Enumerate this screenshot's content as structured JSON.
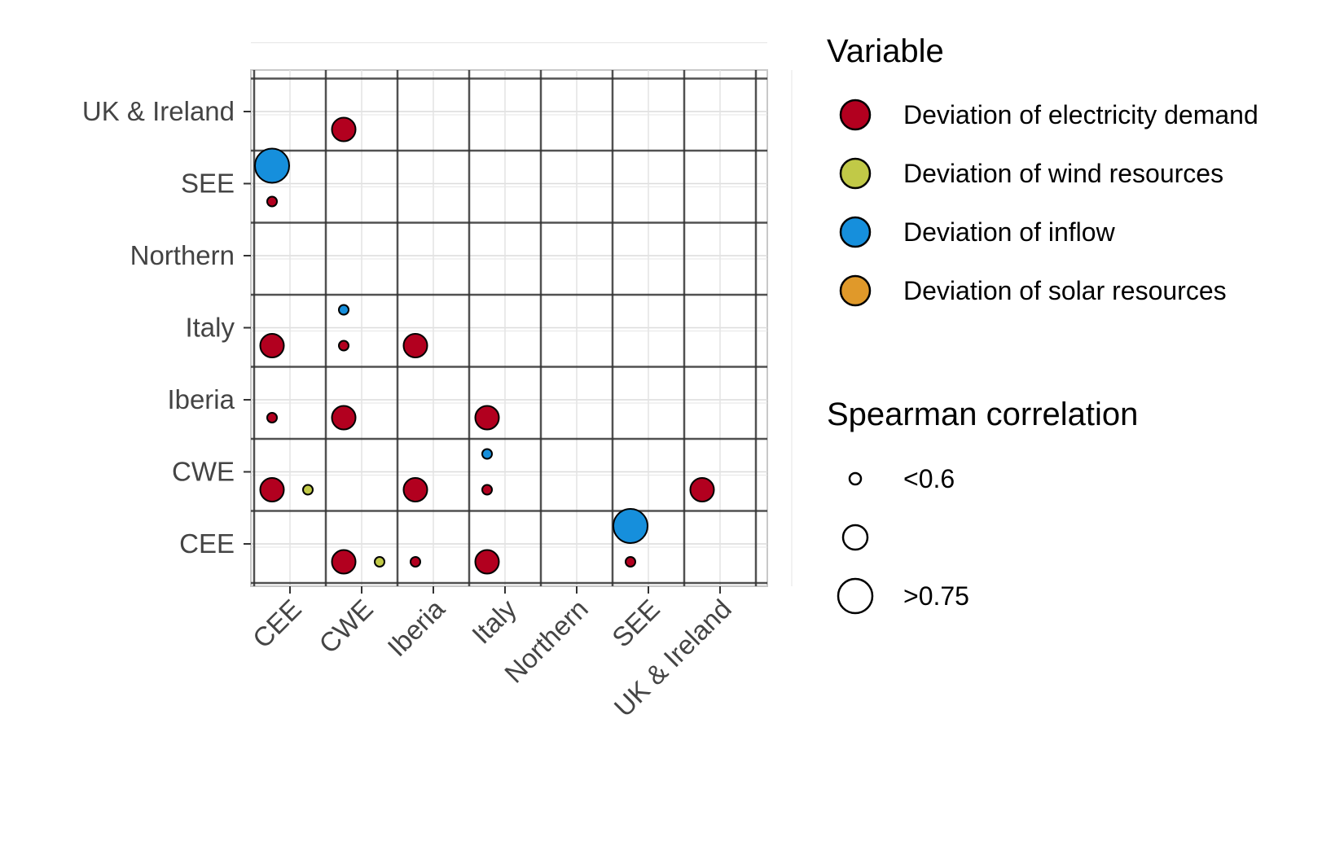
{
  "chart_data": {
    "type": "scatter",
    "title": "",
    "xlabel": "",
    "ylabel": "",
    "x_categories": [
      "CEE",
      "CWE",
      "Iberia",
      "Italy",
      "Northern",
      "SEE",
      "UK & Ireland"
    ],
    "y_categories": [
      "CEE",
      "CWE",
      "Iberia",
      "Italy",
      "Northern",
      "SEE",
      "UK & Ireland"
    ],
    "grid": true,
    "legend_position": "right",
    "variables": [
      {
        "key": "demand",
        "label": "Deviation of electricity demand",
        "color": "#b2001f"
      },
      {
        "key": "wind",
        "label": "Deviation of wind resources",
        "color": "#c1c947"
      },
      {
        "key": "inflow",
        "label": "Deviation of inflow",
        "color": "#168fdc"
      },
      {
        "key": "solar",
        "label": "Deviation of solar resources",
        "color": "#e0992a"
      }
    ],
    "size_legend": {
      "title": "Spearman correlation",
      "items": [
        {
          "label": "<0.6",
          "level": "small"
        },
        {
          "label": "",
          "level": "medium"
        },
        {
          "label": ">0.75",
          "level": "large"
        }
      ]
    },
    "points": [
      {
        "x": "CWE",
        "y": "UK & Ireland",
        "variable": "demand",
        "level": "large"
      },
      {
        "x": "CEE",
        "y": "SEE",
        "variable": "inflow",
        "level": "xlarge"
      },
      {
        "x": "CEE",
        "y": "SEE",
        "variable": "demand",
        "level": "small"
      },
      {
        "x": "CWE",
        "y": "Italy",
        "variable": "inflow",
        "level": "small"
      },
      {
        "x": "CEE",
        "y": "Italy",
        "variable": "demand",
        "level": "large"
      },
      {
        "x": "CWE",
        "y": "Italy",
        "variable": "demand",
        "level": "small"
      },
      {
        "x": "Iberia",
        "y": "Italy",
        "variable": "demand",
        "level": "large"
      },
      {
        "x": "CEE",
        "y": "Iberia",
        "variable": "demand",
        "level": "small"
      },
      {
        "x": "CWE",
        "y": "Iberia",
        "variable": "demand",
        "level": "large"
      },
      {
        "x": "Italy",
        "y": "Iberia",
        "variable": "demand",
        "level": "large"
      },
      {
        "x": "Italy",
        "y": "CWE",
        "variable": "inflow",
        "level": "small"
      },
      {
        "x": "CEE",
        "y": "CWE",
        "variable": "demand",
        "level": "large"
      },
      {
        "x": "CEE",
        "y": "CWE",
        "variable": "wind",
        "level": "small"
      },
      {
        "x": "Iberia",
        "y": "CWE",
        "variable": "demand",
        "level": "large"
      },
      {
        "x": "Italy",
        "y": "CWE",
        "variable": "demand",
        "level": "small"
      },
      {
        "x": "UK & Ireland",
        "y": "CWE",
        "variable": "demand",
        "level": "large"
      },
      {
        "x": "SEE",
        "y": "CEE",
        "variable": "inflow",
        "level": "xlarge"
      },
      {
        "x": "CWE",
        "y": "CEE",
        "variable": "demand",
        "level": "large"
      },
      {
        "x": "CWE",
        "y": "CEE",
        "variable": "wind",
        "level": "small"
      },
      {
        "x": "Iberia",
        "y": "CEE",
        "variable": "demand",
        "level": "small"
      },
      {
        "x": "Italy",
        "y": "CEE",
        "variable": "demand",
        "level": "large"
      },
      {
        "x": "SEE",
        "y": "CEE",
        "variable": "demand",
        "level": "small"
      }
    ]
  }
}
